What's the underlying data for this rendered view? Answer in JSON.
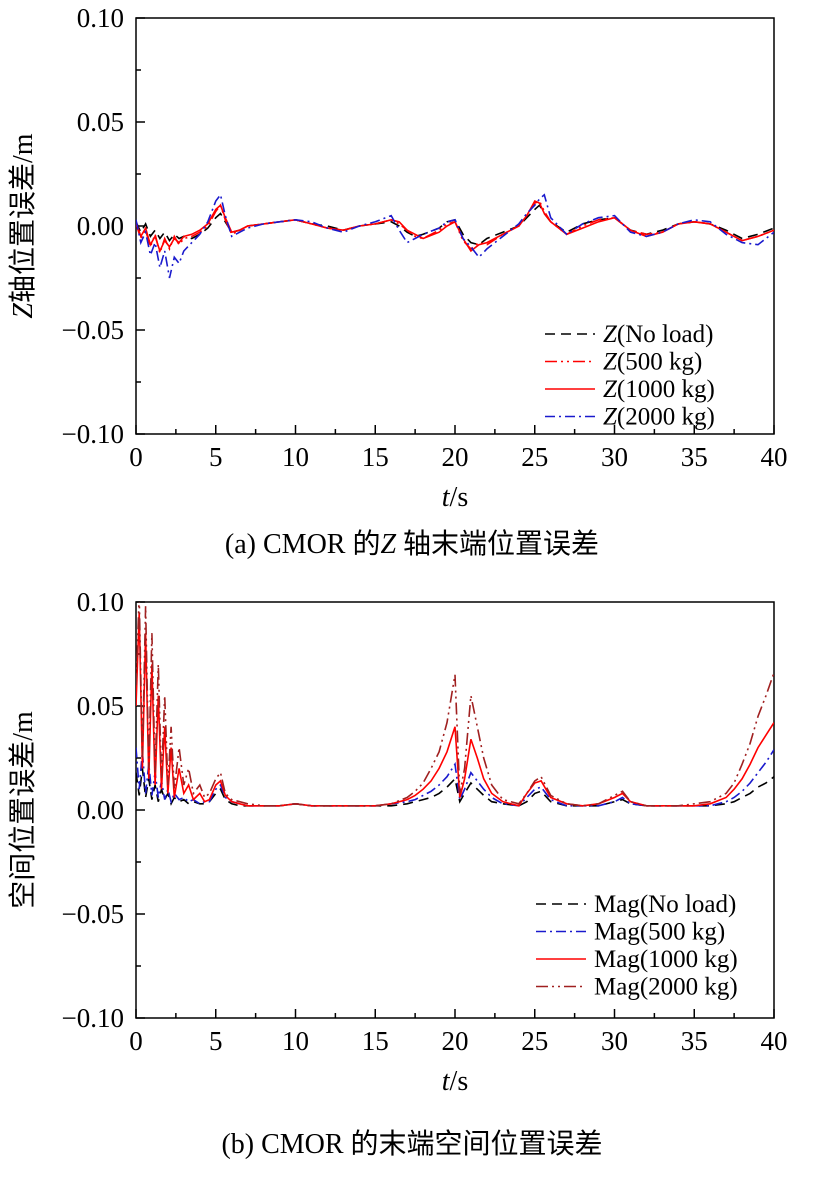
{
  "chart_data": [
    {
      "type": "line",
      "caption_pre": "(a) CMOR 的",
      "caption_italic": "Z",
      "caption_post": " 轴末端位置误差",
      "xlabel_italic": "t",
      "xlabel_rest": "/s",
      "ylabel_italic": "Z",
      "ylabel_rest": "轴位置误差/m",
      "xlim": [
        0,
        40
      ],
      "ylim": [
        -0.1,
        0.1
      ],
      "grid": false,
      "legend_position": "bottom-right",
      "x_ticks": [
        0,
        5,
        10,
        15,
        20,
        25,
        30,
        35,
        40
      ],
      "x_tick_labels": [
        "0",
        "5",
        "10",
        "15",
        "20",
        "25",
        "30",
        "35",
        "40"
      ],
      "x_minor": [
        2.5,
        7.5,
        12.5,
        17.5,
        22.5,
        27.5,
        32.5,
        37.5
      ],
      "y_ticks": [
        {
          "v": 0.1,
          "label": "0.10"
        },
        {
          "v": 0.05,
          "label": "0.05"
        },
        {
          "v": 0.0,
          "label": "0.00"
        },
        {
          "v": -0.05,
          "label": "−0.05"
        },
        {
          "v": -0.1,
          "label": "−0.10"
        }
      ],
      "y_minor": [
        0.075,
        0.025,
        -0.025,
        -0.075
      ],
      "x": [
        0,
        0.3,
        0.6,
        0.9,
        1.2,
        1.5,
        1.8,
        2.1,
        2.4,
        2.7,
        3,
        3.5,
        4,
        4.5,
        5,
        5.3,
        5.6,
        6,
        6.5,
        7,
        8,
        9,
        10,
        11,
        12,
        13,
        14,
        15,
        16,
        16.5,
        17,
        17.5,
        18,
        19,
        19.5,
        20,
        20.5,
        21,
        21.5,
        22,
        23,
        24,
        24.5,
        25,
        25.3,
        25.6,
        26,
        27,
        28,
        29,
        30,
        31,
        32,
        33,
        34,
        35,
        36,
        37,
        38,
        39,
        40
      ],
      "series": [
        {
          "key": "z-no-load",
          "label_italic": "Z",
          "label_rest": "(No load)",
          "color": "#000000",
          "dash": "10 6",
          "values": [
            0.002,
            -0.003,
            0.001,
            -0.005,
            -0.002,
            -0.006,
            -0.003,
            -0.007,
            -0.004,
            -0.006,
            -0.005,
            -0.006,
            -0.004,
            -0.001,
            0.004,
            0.006,
            0.002,
            -0.003,
            -0.002,
            0.0,
            0.001,
            0.002,
            0.003,
            0.001,
            0.0,
            -0.002,
            0.0,
            0.001,
            0.002,
            0.0,
            -0.003,
            -0.005,
            -0.004,
            -0.001,
            0.002,
            0.003,
            -0.004,
            -0.008,
            -0.009,
            -0.006,
            -0.003,
            0.0,
            0.004,
            0.008,
            0.01,
            0.006,
            0.002,
            -0.003,
            0.001,
            0.003,
            0.004,
            -0.002,
            -0.004,
            -0.002,
            0.001,
            0.002,
            0.001,
            -0.002,
            -0.006,
            -0.004,
            -0.001
          ]
        },
        {
          "key": "z-500kg",
          "label_italic": "Z",
          "label_rest": "(500 kg)",
          "color": "#ff0000",
          "dash": "12 4 2 4 2 4",
          "values": [
            0.001,
            -0.006,
            -0.002,
            -0.01,
            -0.004,
            -0.013,
            -0.006,
            -0.011,
            -0.005,
            -0.009,
            -0.006,
            -0.005,
            -0.003,
            0.0,
            0.007,
            0.01,
            0.003,
            -0.004,
            -0.002,
            0.0,
            0.001,
            0.002,
            0.003,
            0.001,
            -0.001,
            -0.002,
            0.0,
            0.001,
            0.003,
            0.001,
            -0.002,
            -0.005,
            -0.006,
            -0.002,
            0.001,
            0.002,
            -0.007,
            -0.011,
            -0.008,
            -0.009,
            -0.004,
            0.0,
            0.005,
            0.011,
            0.012,
            0.007,
            0.002,
            -0.004,
            0.0,
            0.003,
            0.004,
            -0.002,
            -0.004,
            -0.003,
            0.001,
            0.002,
            0.001,
            -0.003,
            -0.007,
            -0.005,
            -0.002
          ]
        },
        {
          "key": "z-1000kg",
          "label_italic": "Z",
          "label_rest": "(1000 kg)",
          "color": "#ff0000",
          "dash": "",
          "values": [
            0.002,
            -0.005,
            -0.001,
            -0.009,
            -0.005,
            -0.012,
            -0.007,
            -0.01,
            -0.006,
            -0.008,
            -0.005,
            -0.004,
            -0.002,
            0.001,
            0.008,
            0.01,
            0.004,
            -0.003,
            -0.002,
            0.0,
            0.001,
            0.002,
            0.003,
            0.001,
            -0.001,
            -0.002,
            0.0,
            0.001,
            0.003,
            0.002,
            -0.002,
            -0.004,
            -0.006,
            -0.003,
            0.0,
            0.002,
            -0.006,
            -0.012,
            -0.009,
            -0.008,
            -0.004,
            0.0,
            0.005,
            0.012,
            0.011,
            0.006,
            0.002,
            -0.004,
            -0.001,
            0.002,
            0.004,
            -0.002,
            -0.005,
            -0.003,
            0.001,
            0.002,
            0.001,
            -0.003,
            -0.007,
            -0.005,
            -0.002
          ]
        },
        {
          "key": "z-2000kg",
          "label_italic": "Z",
          "label_rest": "(2000 kg)",
          "color": "#1a1acd",
          "dash": "10 4 2 4",
          "values": [
            0.003,
            -0.008,
            -0.003,
            -0.014,
            -0.008,
            -0.02,
            -0.012,
            -0.025,
            -0.015,
            -0.018,
            -0.012,
            -0.008,
            -0.004,
            0.002,
            0.012,
            0.015,
            0.005,
            -0.005,
            -0.003,
            -0.001,
            0.001,
            0.002,
            0.003,
            0.002,
            -0.001,
            -0.003,
            0.0,
            0.002,
            0.005,
            -0.002,
            -0.008,
            -0.006,
            -0.004,
            -0.001,
            0.002,
            0.003,
            -0.006,
            -0.01,
            -0.015,
            -0.011,
            -0.005,
            0.001,
            0.006,
            0.01,
            0.013,
            0.015,
            0.004,
            -0.004,
            0.001,
            0.004,
            0.005,
            -0.003,
            -0.005,
            -0.003,
            0.001,
            0.003,
            0.002,
            -0.004,
            -0.008,
            -0.009,
            -0.003
          ]
        }
      ]
    },
    {
      "type": "line",
      "caption_pre": "(b) CMOR 的末端空间位置误差",
      "caption_italic": "",
      "caption_post": "",
      "xlabel_italic": "t",
      "xlabel_rest": "/s",
      "ylabel_italic": "",
      "ylabel_rest": "空间位置误差/m",
      "xlim": [
        0,
        40
      ],
      "ylim": [
        -0.1,
        0.1
      ],
      "grid": false,
      "legend_position": "bottom-right",
      "x_ticks": [
        0,
        5,
        10,
        15,
        20,
        25,
        30,
        35,
        40
      ],
      "x_tick_labels": [
        "0",
        "5",
        "10",
        "15",
        "20",
        "25",
        "30",
        "35",
        "40"
      ],
      "x_minor": [
        2.5,
        7.5,
        12.5,
        17.5,
        22.5,
        27.5,
        32.5,
        37.5
      ],
      "y_ticks": [
        {
          "v": 0.1,
          "label": "0.10"
        },
        {
          "v": 0.05,
          "label": "0.05"
        },
        {
          "v": 0.0,
          "label": "0.00"
        },
        {
          "v": -0.05,
          "label": "−0.05"
        },
        {
          "v": -0.1,
          "label": "−0.10"
        }
      ],
      "y_minor": [
        0.075,
        0.025,
        -0.025,
        -0.075
      ],
      "x": [
        0,
        0.2,
        0.4,
        0.6,
        0.8,
        1,
        1.2,
        1.4,
        1.6,
        1.8,
        2,
        2.2,
        2.4,
        2.7,
        3,
        3.3,
        3.6,
        4,
        4.3,
        4.6,
        5,
        5.3,
        5.6,
        6,
        6.5,
        7,
        8,
        9,
        10,
        11,
        12,
        13,
        14,
        15,
        16,
        17,
        17.5,
        18,
        18.5,
        19,
        19.5,
        20,
        20.3,
        20.6,
        21,
        21.4,
        21.8,
        22.3,
        23,
        24,
        24.5,
        25,
        25.4,
        26,
        27,
        28,
        29,
        30,
        30.5,
        31,
        32,
        33,
        34,
        35,
        36,
        37,
        37.5,
        38,
        38.5,
        39,
        39.5,
        40
      ],
      "series": [
        {
          "key": "mag-no-load",
          "label_italic": "",
          "label_rest": "Mag(No load)",
          "color": "#000000",
          "dash": "10 6",
          "values": [
            0.018,
            0.007,
            0.02,
            0.006,
            0.015,
            0.005,
            0.012,
            0.004,
            0.01,
            0.005,
            0.008,
            0.003,
            0.006,
            0.004,
            0.005,
            0.003,
            0.004,
            0.003,
            0.003,
            0.004,
            0.008,
            0.01,
            0.005,
            0.003,
            0.002,
            0.002,
            0.002,
            0.002,
            0.003,
            0.002,
            0.002,
            0.002,
            0.002,
            0.002,
            0.002,
            0.003,
            0.004,
            0.005,
            0.006,
            0.008,
            0.011,
            0.015,
            0.004,
            0.008,
            0.013,
            0.01,
            0.007,
            0.004,
            0.003,
            0.002,
            0.004,
            0.008,
            0.009,
            0.004,
            0.002,
            0.002,
            0.002,
            0.004,
            0.005,
            0.003,
            0.002,
            0.002,
            0.002,
            0.002,
            0.002,
            0.003,
            0.004,
            0.006,
            0.008,
            0.011,
            0.013,
            0.016
          ]
        },
        {
          "key": "mag-500kg",
          "label_italic": "",
          "label_rest": "Mag(500 kg)",
          "color": "#1a1acd",
          "dash": "10 4 2 4",
          "values": [
            0.03,
            0.01,
            0.028,
            0.008,
            0.022,
            0.007,
            0.018,
            0.006,
            0.014,
            0.005,
            0.01,
            0.004,
            0.008,
            0.005,
            0.006,
            0.004,
            0.005,
            0.003,
            0.004,
            0.004,
            0.01,
            0.012,
            0.006,
            0.004,
            0.003,
            0.002,
            0.002,
            0.002,
            0.003,
            0.002,
            0.002,
            0.002,
            0.002,
            0.002,
            0.003,
            0.004,
            0.005,
            0.007,
            0.009,
            0.012,
            0.016,
            0.022,
            0.005,
            0.01,
            0.018,
            0.014,
            0.01,
            0.006,
            0.003,
            0.002,
            0.006,
            0.01,
            0.011,
            0.005,
            0.002,
            0.002,
            0.002,
            0.004,
            0.006,
            0.003,
            0.002,
            0.002,
            0.002,
            0.002,
            0.002,
            0.004,
            0.006,
            0.009,
            0.013,
            0.018,
            0.023,
            0.029
          ]
        },
        {
          "key": "mag-1000kg",
          "label_italic": "",
          "label_rest": "Mag(1000 kg)",
          "color": "#ff0000",
          "dash": "",
          "values": [
            0.05,
            0.095,
            0.02,
            0.085,
            0.015,
            0.07,
            0.012,
            0.055,
            0.01,
            0.04,
            0.008,
            0.03,
            0.006,
            0.02,
            0.008,
            0.012,
            0.005,
            0.008,
            0.004,
            0.005,
            0.012,
            0.014,
            0.007,
            0.004,
            0.003,
            0.002,
            0.002,
            0.002,
            0.003,
            0.002,
            0.002,
            0.002,
            0.002,
            0.002,
            0.003,
            0.005,
            0.007,
            0.01,
            0.014,
            0.02,
            0.028,
            0.04,
            0.006,
            0.015,
            0.034,
            0.025,
            0.015,
            0.008,
            0.004,
            0.002,
            0.008,
            0.013,
            0.014,
            0.006,
            0.003,
            0.002,
            0.003,
            0.006,
            0.008,
            0.004,
            0.002,
            0.002,
            0.002,
            0.002,
            0.003,
            0.006,
            0.01,
            0.015,
            0.022,
            0.03,
            0.036,
            0.042
          ]
        },
        {
          "key": "mag-2000kg",
          "label_italic": "",
          "label_rest": "Mag(2000 kg)",
          "color": "#a02020",
          "dash": "12 4 2 4 2 4",
          "values": [
            0.06,
            0.103,
            0.025,
            0.098,
            0.02,
            0.085,
            0.018,
            0.07,
            0.015,
            0.055,
            0.012,
            0.04,
            0.01,
            0.03,
            0.012,
            0.02,
            0.008,
            0.012,
            0.006,
            0.008,
            0.015,
            0.018,
            0.008,
            0.005,
            0.004,
            0.003,
            0.002,
            0.002,
            0.003,
            0.002,
            0.002,
            0.002,
            0.002,
            0.002,
            0.003,
            0.006,
            0.009,
            0.013,
            0.02,
            0.028,
            0.042,
            0.065,
            0.008,
            0.02,
            0.055,
            0.04,
            0.025,
            0.012,
            0.005,
            0.003,
            0.008,
            0.014,
            0.016,
            0.007,
            0.003,
            0.002,
            0.003,
            0.007,
            0.009,
            0.004,
            0.002,
            0.002,
            0.002,
            0.003,
            0.004,
            0.008,
            0.013,
            0.022,
            0.032,
            0.045,
            0.055,
            0.066
          ]
        }
      ]
    }
  ]
}
